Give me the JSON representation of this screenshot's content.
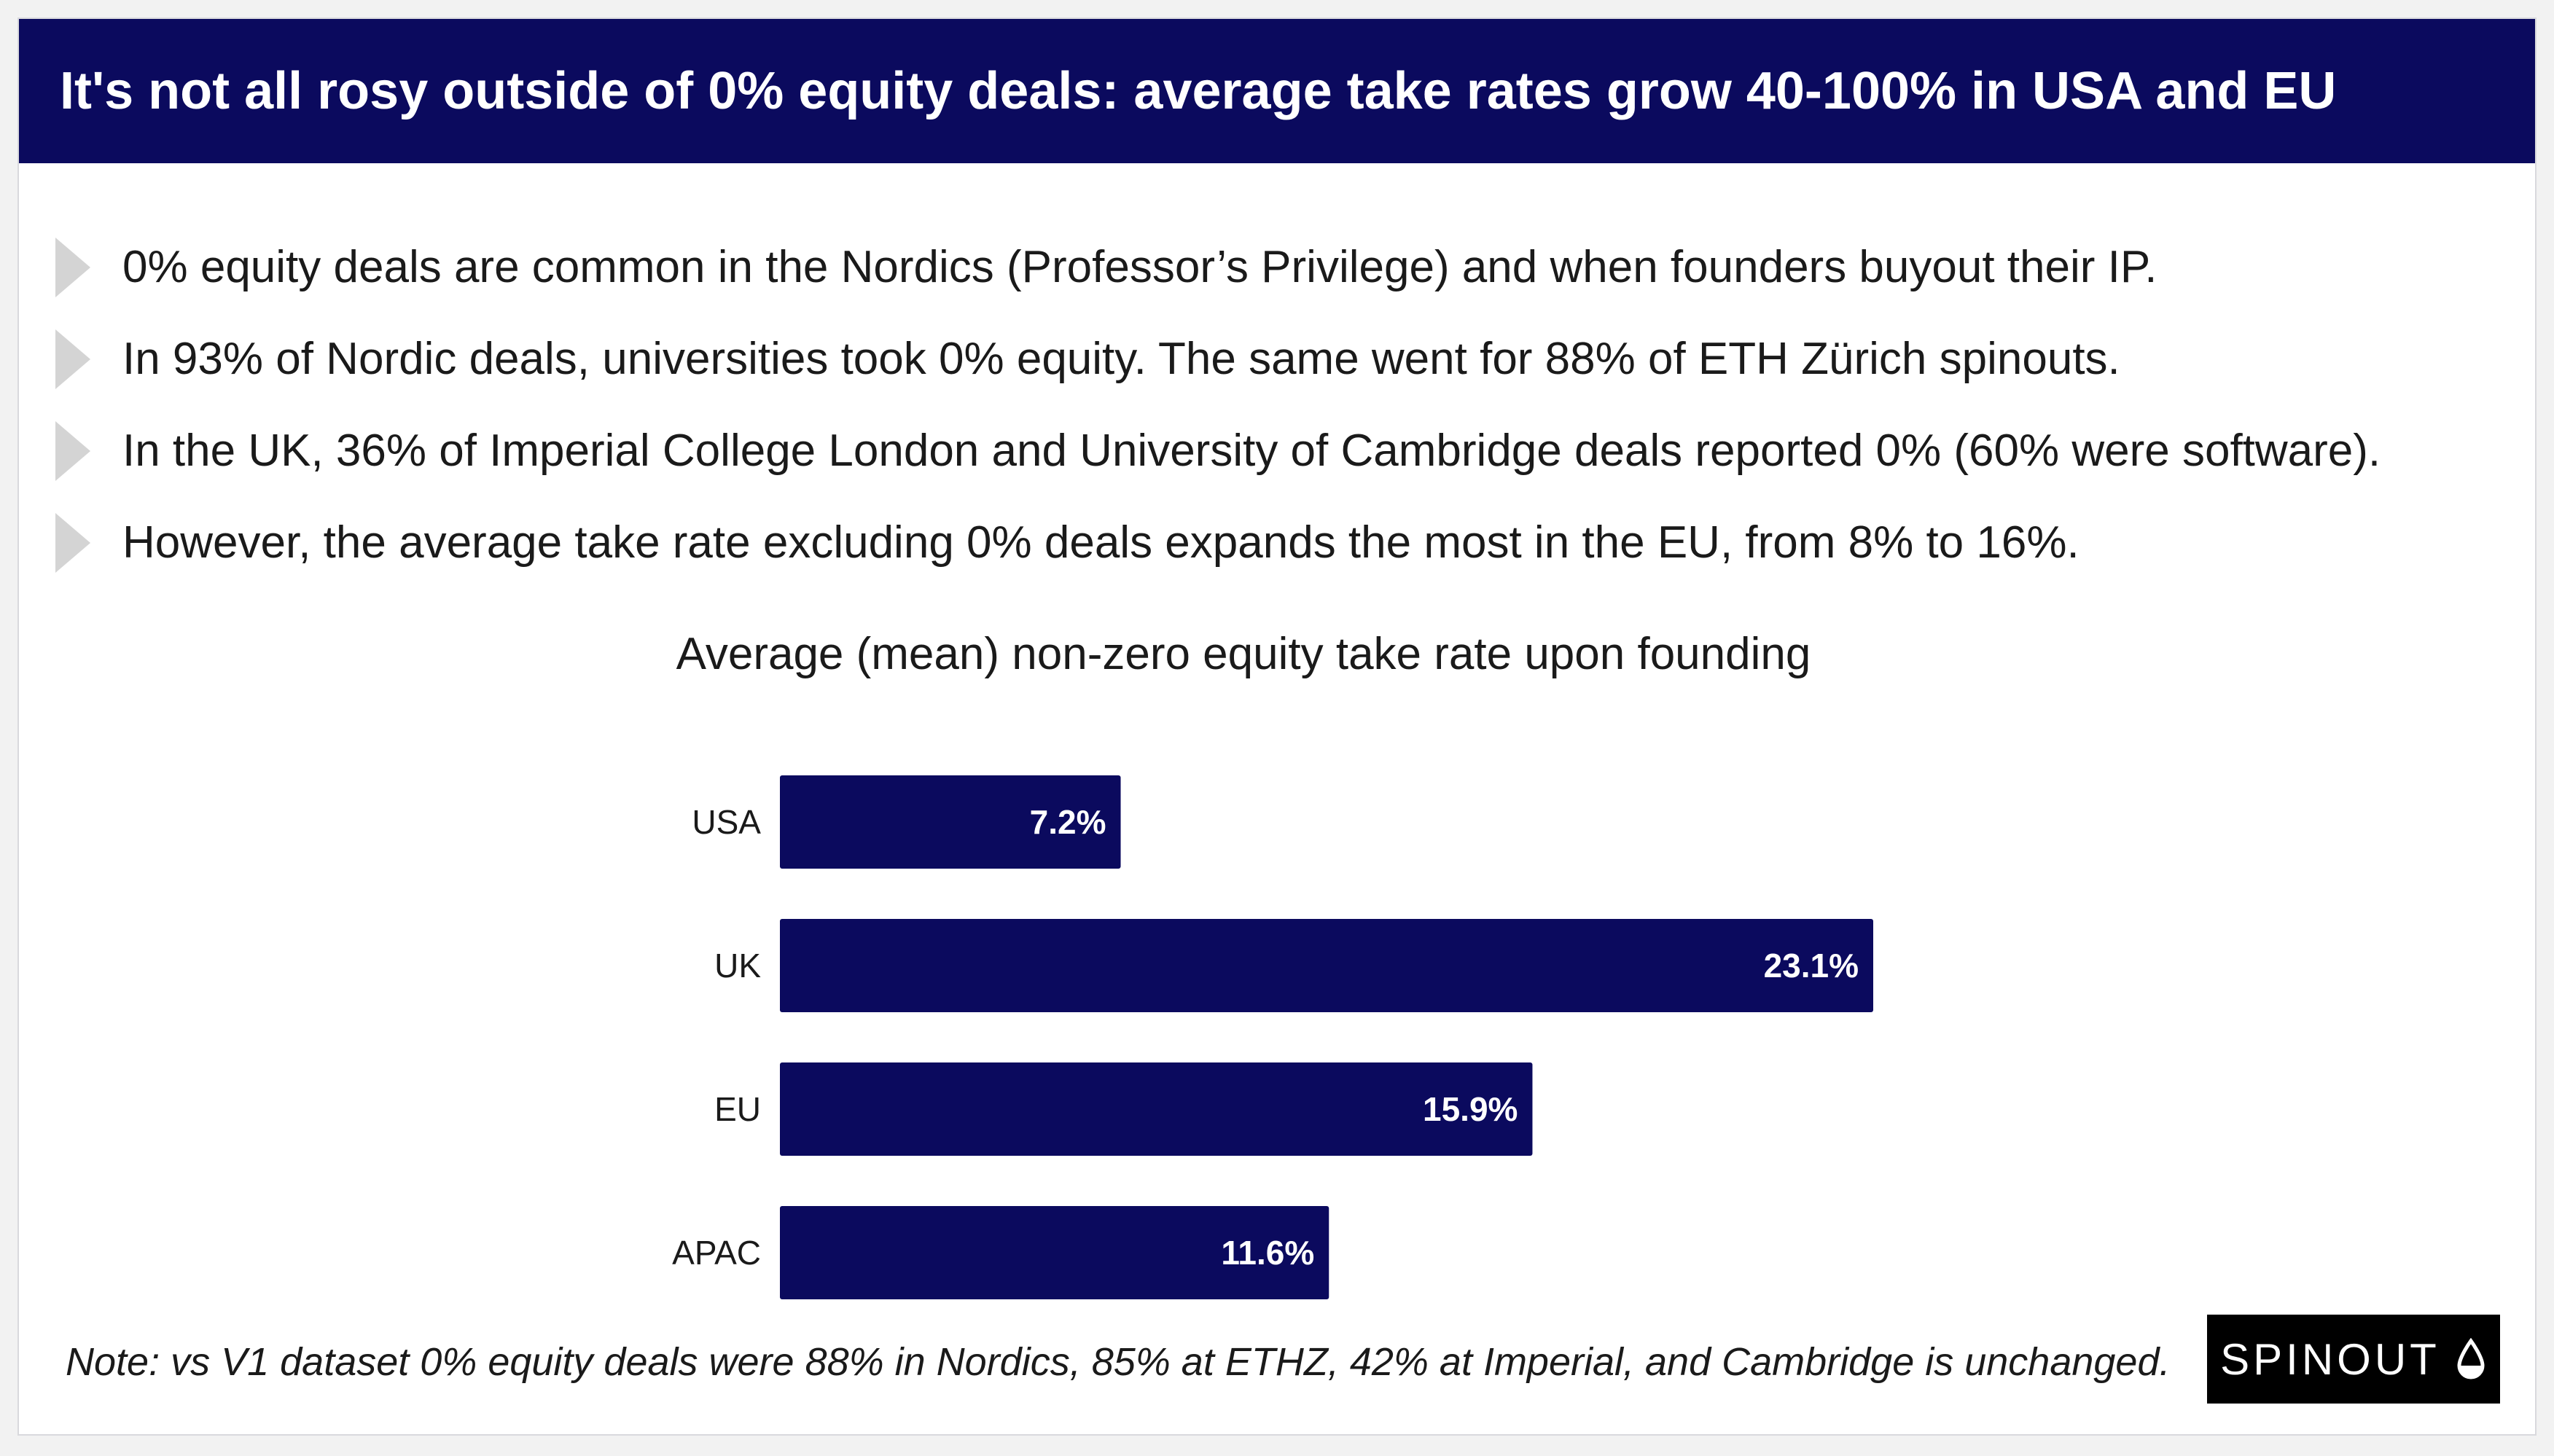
{
  "header": {
    "title": "It's not all rosy outside of 0% equity deals: average take rates grow 40-100% in USA and EU"
  },
  "bullets": [
    "0% equity deals are common in the Nordics (Professor’s Privilege) and when founders buyout their IP.",
    "In 93% of Nordic deals, universities took 0% equity. The same went for 88% of ETH Zürich spinouts.",
    "In the UK, 36% of Imperial College London and University of Cambridge deals reported 0% (60% were software).",
    "However, the average take rate excluding 0% deals expands the most in the EU, from 8% to 16%."
  ],
  "chart_data": {
    "type": "bar",
    "orientation": "horizontal",
    "title": "Average (mean) non-zero equity take rate upon founding",
    "categories": [
      "USA",
      "UK",
      "EU",
      "APAC"
    ],
    "values": [
      7.2,
      23.1,
      15.9,
      11.6
    ],
    "value_labels": [
      "7.2%",
      "23.1%",
      "15.9%",
      "11.6%"
    ],
    "unit": "%",
    "xlim": [
      0,
      23.1
    ],
    "grid": false,
    "legend": "none",
    "bar_color": "#0b0a5e",
    "label_color": "#ffffff"
  },
  "note": "Note: vs V1 dataset 0% equity deals were 88% in Nordics, 85% at ETHZ,  42% at Imperial, and Cambridge is unchanged.",
  "logo": {
    "text": "SPINOUT",
    "icon": "drop-icon"
  },
  "colors": {
    "brand_navy": "#0b0a5e",
    "background": "#f2f2f2",
    "bullet_arrow": "#d4d4d4"
  }
}
